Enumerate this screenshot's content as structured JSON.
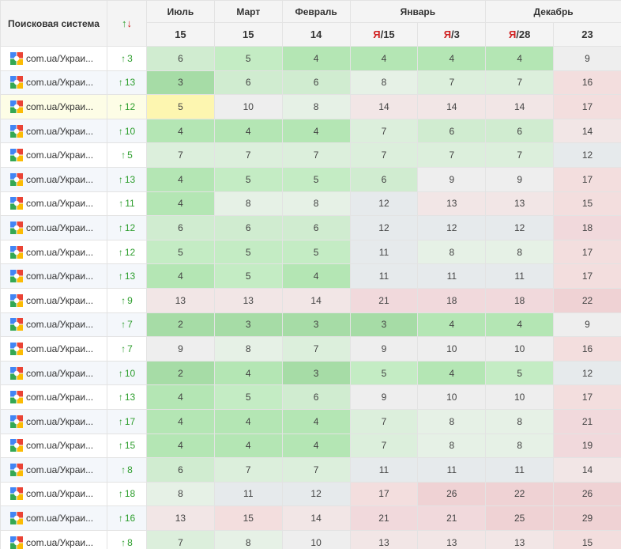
{
  "header": {
    "engine_col": "Поисковая система",
    "change_up_arrow": "↑",
    "change_down_arrow": "↓",
    "months": [
      {
        "label": "Июль",
        "span": 1
      },
      {
        "label": "Март",
        "span": 1
      },
      {
        "label": "Февраль",
        "span": 1
      },
      {
        "label": "Январь",
        "span": 2
      },
      {
        "label": "Декабрь",
        "span": 2
      }
    ],
    "days": [
      {
        "weekday": "",
        "day": "15"
      },
      {
        "weekday": "",
        "day": "15"
      },
      {
        "weekday": "",
        "day": "14"
      },
      {
        "weekday": "Я",
        "day": "/15"
      },
      {
        "weekday": "Я",
        "day": "/3"
      },
      {
        "weekday": "Я",
        "day": "/28"
      },
      {
        "weekday": "",
        "day": "23"
      }
    ]
  },
  "engine_icon": "google-logo-icon",
  "colors": {
    "up": "#2e9e2e",
    "down": "#d02020",
    "best": "#a6dea6",
    "good": "#c8eec8",
    "neutral": "#e8e8e8",
    "bad": "#f3dcdc",
    "highlight": "#fdf6b0"
  },
  "rows": [
    {
      "engine": "com.ua/Украи...",
      "change": "3",
      "values": [
        6,
        5,
        4,
        4,
        4,
        4,
        9
      ]
    },
    {
      "engine": "com.ua/Украи...",
      "change": "13",
      "values": [
        3,
        6,
        6,
        8,
        7,
        7,
        16
      ]
    },
    {
      "engine": "com.ua/Украи...",
      "change": "12",
      "values": [
        5,
        10,
        8,
        14,
        14,
        14,
        17
      ]
    },
    {
      "engine": "com.ua/Украи...",
      "change": "10",
      "values": [
        4,
        4,
        4,
        7,
        6,
        6,
        14
      ]
    },
    {
      "engine": "com.ua/Украи...",
      "change": "5",
      "values": [
        7,
        7,
        7,
        7,
        7,
        7,
        12
      ]
    },
    {
      "engine": "com.ua/Украи...",
      "change": "13",
      "values": [
        4,
        5,
        5,
        6,
        9,
        9,
        17
      ]
    },
    {
      "engine": "com.ua/Украи...",
      "change": "11",
      "values": [
        4,
        8,
        8,
        12,
        13,
        13,
        15
      ]
    },
    {
      "engine": "com.ua/Украи...",
      "change": "12",
      "values": [
        6,
        6,
        6,
        12,
        12,
        12,
        18
      ]
    },
    {
      "engine": "com.ua/Украи...",
      "change": "12",
      "values": [
        5,
        5,
        5,
        11,
        8,
        8,
        17
      ]
    },
    {
      "engine": "com.ua/Украи...",
      "change": "13",
      "values": [
        4,
        5,
        4,
        11,
        11,
        11,
        17
      ]
    },
    {
      "engine": "com.ua/Украи...",
      "change": "9",
      "values": [
        13,
        13,
        14,
        21,
        18,
        18,
        22
      ]
    },
    {
      "engine": "com.ua/Украи...",
      "change": "7",
      "values": [
        2,
        3,
        3,
        3,
        4,
        4,
        9
      ]
    },
    {
      "engine": "com.ua/Украи...",
      "change": "7",
      "values": [
        9,
        8,
        7,
        9,
        10,
        10,
        16
      ]
    },
    {
      "engine": "com.ua/Украи...",
      "change": "10",
      "values": [
        2,
        4,
        3,
        5,
        4,
        5,
        12
      ]
    },
    {
      "engine": "com.ua/Украи...",
      "change": "13",
      "values": [
        4,
        5,
        6,
        9,
        10,
        10,
        17
      ]
    },
    {
      "engine": "com.ua/Украи...",
      "change": "17",
      "values": [
        4,
        4,
        4,
        7,
        8,
        8,
        21
      ]
    },
    {
      "engine": "com.ua/Украи...",
      "change": "15",
      "values": [
        4,
        4,
        4,
        7,
        8,
        8,
        19
      ]
    },
    {
      "engine": "com.ua/Украи...",
      "change": "8",
      "values": [
        6,
        7,
        7,
        11,
        11,
        11,
        14
      ]
    },
    {
      "engine": "com.ua/Украи...",
      "change": "18",
      "values": [
        8,
        11,
        12,
        17,
        26,
        22,
        26
      ]
    },
    {
      "engine": "com.ua/Украи...",
      "change": "16",
      "values": [
        13,
        15,
        14,
        21,
        21,
        25,
        29
      ]
    },
    {
      "engine": "com.ua/Украи...",
      "change": "8",
      "values": [
        7,
        8,
        10,
        13,
        13,
        13,
        15
      ]
    }
  ]
}
